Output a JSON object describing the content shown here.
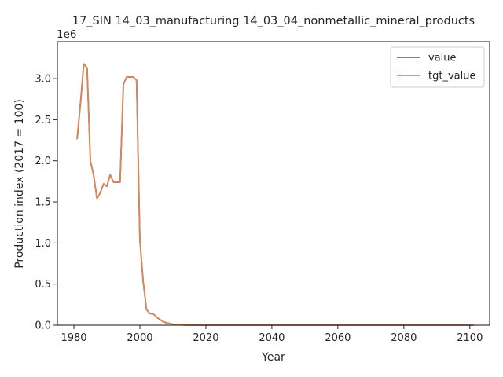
{
  "chart_data": {
    "type": "line",
    "title": "17_SIN 14_03_manufacturing 14_03_04_nonmetallic_mineral_products",
    "xlabel": "Year",
    "ylabel": "Production index (2017 = 100)",
    "y_multiplier_label": "1e6",
    "xlim": [
      1975,
      2106
    ],
    "ylim": [
      0,
      3450000
    ],
    "x_ticks": [
      1980,
      2000,
      2020,
      2040,
      2060,
      2080,
      2100
    ],
    "y_ticks": [
      0,
      500000,
      1000000,
      1500000,
      2000000,
      2500000,
      3000000
    ],
    "y_tick_labels": [
      "0.0",
      "0.5",
      "1.0",
      "1.5",
      "2.0",
      "2.5",
      "3.0"
    ],
    "grid": false,
    "legend_position": "top-right",
    "series": [
      {
        "name": "value",
        "color": "#4c72b0",
        "x": [
          1981,
          1982,
          1983,
          1984,
          1985,
          1986,
          1987,
          1988,
          1989,
          1990,
          1991,
          1992,
          1993,
          1994,
          1995,
          1996,
          1997,
          1998,
          1999,
          2000,
          2001,
          2002,
          2003,
          2004,
          2005,
          2006,
          2007,
          2008,
          2009,
          2010,
          2011,
          2012,
          2013,
          2014,
          2015,
          2016,
          2017,
          2018,
          2019,
          2020,
          2021,
          2022,
          2023,
          2024,
          2025,
          2026,
          2027,
          2028,
          2029,
          2030,
          2031,
          2032,
          2033,
          2034,
          2035,
          2036,
          2037,
          2038,
          2039,
          2040,
          2041,
          2042,
          2043,
          2044,
          2045,
          2046,
          2047,
          2048,
          2049,
          2050,
          2051,
          2052,
          2053,
          2054,
          2055,
          2056,
          2057,
          2058,
          2059,
          2060,
          2061,
          2062,
          2063,
          2064,
          2065,
          2066,
          2067,
          2068,
          2069,
          2070,
          2071,
          2072,
          2073,
          2074,
          2075,
          2076,
          2077,
          2078,
          2079,
          2080,
          2081,
          2082,
          2083,
          2084,
          2085,
          2086,
          2087,
          2088,
          2089,
          2090,
          2091,
          2092,
          2093,
          2094,
          2095,
          2096,
          2097,
          2098,
          2099,
          2100,
          2101
        ],
        "y": [
          2270000,
          2700000,
          3180000,
          3130000,
          2000000,
          1820000,
          1540000,
          1610000,
          1720000,
          1690000,
          1830000,
          1740000,
          1740000,
          1740000,
          2930000,
          3020000,
          3020000,
          3020000,
          2980000,
          1040000,
          530000,
          190000,
          140000,
          140000,
          100000,
          70000,
          45000,
          30000,
          20000,
          12000,
          8000,
          5000,
          3000,
          2000,
          1000,
          600,
          400,
          300,
          200,
          150,
          120,
          100,
          100,
          100,
          100,
          100,
          100,
          100,
          100,
          100,
          100,
          100,
          100,
          100,
          100,
          100,
          100,
          100,
          100,
          100,
          100,
          100,
          100,
          100,
          100,
          100,
          100,
          100,
          100,
          100,
          100,
          100,
          100,
          100,
          100,
          100,
          100,
          100,
          100,
          100,
          100,
          100,
          100,
          100,
          100,
          100,
          100,
          100,
          100,
          100,
          100,
          100,
          100,
          100,
          100,
          100,
          100,
          100,
          100,
          100,
          100,
          100,
          100,
          100,
          100,
          100,
          100,
          100,
          100,
          100,
          100,
          100,
          100,
          100,
          100,
          100,
          100,
          100,
          100,
          100,
          100
        ]
      },
      {
        "name": "tgt_value",
        "color": "#dd8452",
        "x": [
          1981,
          1982,
          1983,
          1984,
          1985,
          1986,
          1987,
          1988,
          1989,
          1990,
          1991,
          1992,
          1993,
          1994,
          1995,
          1996,
          1997,
          1998,
          1999,
          2000,
          2001,
          2002,
          2003,
          2004,
          2005,
          2006,
          2007,
          2008,
          2009,
          2010,
          2011,
          2012,
          2013,
          2014,
          2015,
          2016,
          2017,
          2018,
          2019,
          2020,
          2021,
          2022,
          2023,
          2024,
          2025,
          2026,
          2027,
          2028,
          2029,
          2030,
          2031,
          2032,
          2033,
          2034,
          2035,
          2036,
          2037,
          2038,
          2039,
          2040,
          2041,
          2042,
          2043,
          2044,
          2045,
          2046,
          2047,
          2048,
          2049,
          2050,
          2051,
          2052,
          2053,
          2054,
          2055,
          2056,
          2057,
          2058,
          2059,
          2060,
          2061,
          2062,
          2063,
          2064,
          2065,
          2066,
          2067,
          2068,
          2069,
          2070,
          2071,
          2072,
          2073,
          2074,
          2075,
          2076,
          2077,
          2078,
          2079,
          2080,
          2081,
          2082,
          2083,
          2084,
          2085,
          2086,
          2087,
          2088,
          2089,
          2090,
          2091,
          2092,
          2093,
          2094,
          2095,
          2096,
          2097,
          2098,
          2099,
          2100,
          2101
        ],
        "y": [
          2270000,
          2700000,
          3180000,
          3130000,
          2000000,
          1820000,
          1540000,
          1610000,
          1720000,
          1690000,
          1830000,
          1740000,
          1740000,
          1740000,
          2930000,
          3020000,
          3020000,
          3020000,
          2980000,
          1040000,
          530000,
          190000,
          140000,
          140000,
          100000,
          70000,
          45000,
          30000,
          20000,
          12000,
          8000,
          5000,
          3000,
          2000,
          1000,
          600,
          400,
          300,
          200,
          150,
          120,
          100,
          100,
          100,
          100,
          100,
          100,
          100,
          100,
          100,
          100,
          100,
          100,
          100,
          100,
          100,
          100,
          100,
          100,
          100,
          100,
          100,
          100,
          100,
          100,
          100,
          100,
          100,
          100,
          100,
          100,
          100,
          100,
          100,
          100,
          100,
          100,
          100,
          100,
          100,
          100,
          100,
          100,
          100,
          100,
          100,
          100,
          100,
          100,
          100,
          100,
          100,
          100,
          100,
          100,
          100,
          100,
          100,
          100,
          100,
          100,
          100,
          100,
          100,
          100,
          100,
          100,
          100,
          100,
          100,
          100,
          100,
          100,
          100,
          100,
          100,
          100,
          100,
          100,
          100,
          100
        ]
      }
    ]
  }
}
